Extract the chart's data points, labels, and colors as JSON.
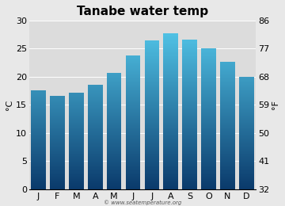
{
  "title": "Tanabe water temp",
  "months": [
    "J",
    "F",
    "M",
    "A",
    "M",
    "J",
    "J",
    "A",
    "S",
    "O",
    "N",
    "D"
  ],
  "values_c": [
    17.5,
    16.7,
    17.1,
    18.6,
    20.7,
    23.8,
    26.4,
    27.7,
    26.6,
    25.0,
    22.6,
    20.0
  ],
  "ylim_c": [
    0,
    30
  ],
  "yticks_c": [
    0,
    5,
    10,
    15,
    20,
    25,
    30
  ],
  "yticks_f": [
    32,
    41,
    50,
    59,
    68,
    77,
    86
  ],
  "ylabel_left": "°C",
  "ylabel_right": "°F",
  "bar_color_top": "#55ccee",
  "bar_color_bottom": "#0a3a6b",
  "background_color": "#e8e8e8",
  "plot_bg_color": "#dcdcdc",
  "title_fontsize": 11,
  "axis_fontsize": 8,
  "tick_fontsize": 8,
  "watermark": "© www.seatemperature.org"
}
